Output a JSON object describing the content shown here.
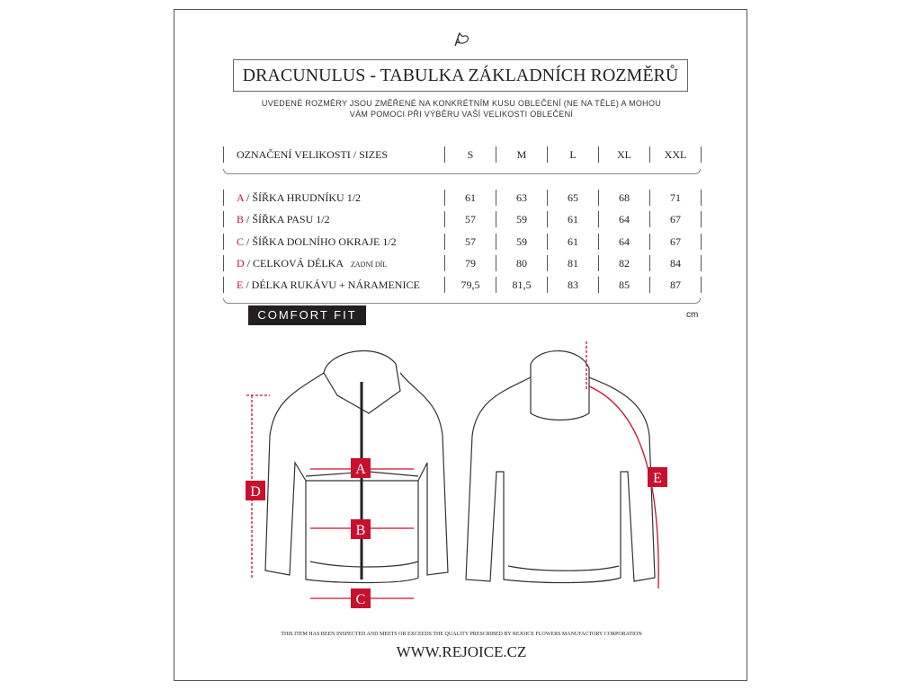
{
  "logo": "rejoice-flower-logo",
  "title": "DRACUNULUS - TABULKA ZÁKLADNÍCH ROZMĚRŮ",
  "subtitle_line1": "UVEDENÉ ROZMĚRY JSOU ZMĚŘENÉ NA KONKRÉTNÍM KUSU OBLEČENÍ (NE NA TĚLE) A MOHOU",
  "subtitle_line2": "VÁM POMOCI PŘI VÝBĚRU VAŠÍ VELIKOSTI OBLEČENÍ",
  "table": {
    "header_label": "OZNAČENÍ VELIKOSTI / SIZES",
    "sizes": [
      "S",
      "M",
      "L",
      "XL",
      "XXL"
    ],
    "rows": [
      {
        "letter": "A",
        "label": " / ŠÍŘKA HRUDNÍKU 1/2",
        "note": "",
        "values": [
          "61",
          "63",
          "65",
          "68",
          "71"
        ]
      },
      {
        "letter": "B",
        "label": " / ŠÍŘKA PASU 1/2",
        "note": "",
        "values": [
          "57",
          "59",
          "61",
          "64",
          "67"
        ]
      },
      {
        "letter": "C",
        "label": " / ŠÍŘKA DOLNÍHO OKRAJE 1/2",
        "note": "",
        "values": [
          "57",
          "59",
          "61",
          "64",
          "67"
        ]
      },
      {
        "letter": "D",
        "label": " / CELKOVÁ DÉLKA",
        "note": "ZADNÍ DÍL",
        "values": [
          "79",
          "80",
          "81",
          "82",
          "84"
        ]
      },
      {
        "letter": "E",
        "label": " / DÉLKA RUKÁVU + NÁRAMENICE",
        "note": "",
        "values": [
          "79,5",
          "81,5",
          "83",
          "85",
          "87"
        ]
      }
    ]
  },
  "fit": "COMFORT FIT",
  "unit": "cm",
  "markers": {
    "a": "A",
    "b": "B",
    "c": "C",
    "d": "D",
    "e": "E"
  },
  "accent": "#c8102e",
  "quality": "THIS ITEM HAS BEEN INSPECTED AND MEETS OR EXCEEDS THE QUALITY PRESCRIBED BY REJOICE FLOWERS MANUFACTORY CORPORATION",
  "website": "WWW.REJOICE.CZ"
}
